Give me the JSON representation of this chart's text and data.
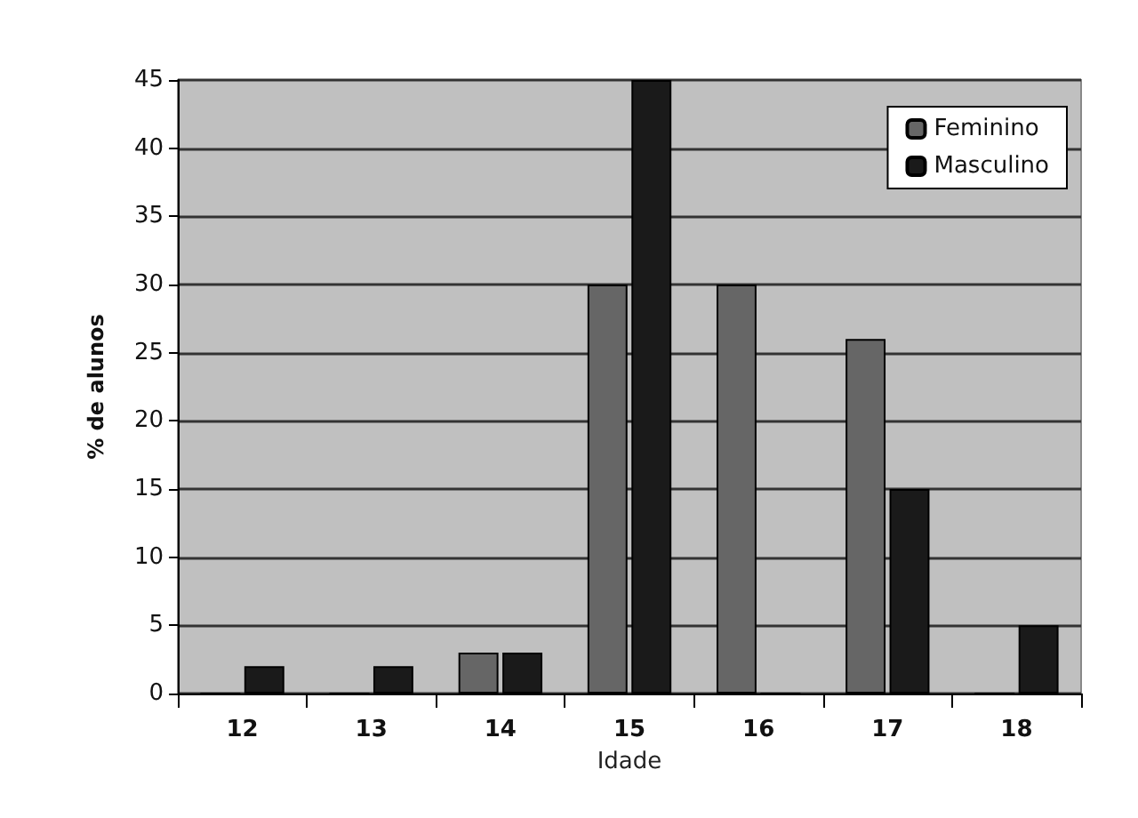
{
  "chart_data": {
    "type": "bar",
    "xlabel": "Idade",
    "ylabel": "% de alunos",
    "categories": [
      "12",
      "13",
      "14",
      "15",
      "16",
      "17",
      "18"
    ],
    "series": [
      {
        "name": "Feminino",
        "color": "#666666",
        "values": [
          0,
          0,
          3,
          30,
          30,
          26,
          0
        ]
      },
      {
        "name": "Masculino",
        "color": "#1a1a1a",
        "values": [
          2,
          2,
          3,
          45,
          0,
          15,
          5
        ]
      }
    ],
    "ylim": [
      0,
      45
    ],
    "yticks": [
      0,
      5,
      10,
      15,
      20,
      25,
      30,
      35,
      40,
      45
    ],
    "grid": "y",
    "legend": "top right"
  }
}
